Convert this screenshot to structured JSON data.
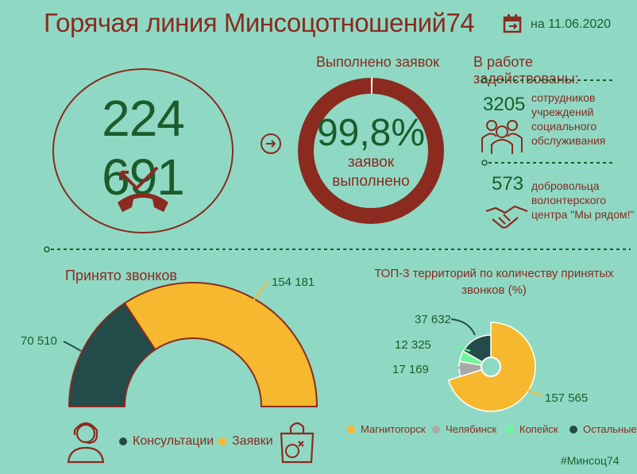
{
  "header": {
    "title": "Горячая линия Минсоцотношений74",
    "date": "на 11.06.2020",
    "calendar_icon": "calendar-icon"
  },
  "total_calls": {
    "value": "224 691",
    "icon": "phone-hangup-icon"
  },
  "completed": {
    "title": "Выполнено заявок",
    "percent_label": "99,8%",
    "sub_line1": "заявок",
    "sub_line2": "выполнено",
    "percent_value": 99.8
  },
  "staff": {
    "title": "В работе задействованы:",
    "employees_count": "3205",
    "employees_text": [
      "сотрудников",
      "учреждений",
      "социального",
      "обслуживания"
    ],
    "employees_icon": "people-group-icon",
    "volunteers_count": "573",
    "volunteers_text": [
      "добровольца",
      "волонтерского",
      "центра \"Мы рядом!\""
    ],
    "volunteers_icon": "handshake-icon"
  },
  "colors": {
    "brand_red": "#8b2a1f",
    "dark_green": "#1c5c2b",
    "teal_dark": "#234b4a",
    "yellow": "#f5b82e",
    "background": "#8fd9c4"
  },
  "chart_data": [
    {
      "type": "pie",
      "title": "Принято звонков",
      "categories": [
        "Консультации",
        "Заявки"
      ],
      "values": [
        70510,
        154181
      ],
      "value_labels": [
        "70 510",
        "154 181"
      ],
      "colors": [
        "#234b4a",
        "#f5b82e"
      ],
      "legend": [
        {
          "label": "Консультации",
          "color": "#234b4a",
          "icon": "headset-operator-icon"
        },
        {
          "label": "Заявки",
          "color": "#f5b82e",
          "icon": "shopping-bag-icon"
        }
      ]
    },
    {
      "type": "pie",
      "title": "ТОП-3 территорий по количеству принятых звонков (%)",
      "categories": [
        "Магнитогорск",
        "Челябинск",
        "Копейск",
        "Остальные"
      ],
      "values": [
        157565,
        17169,
        12325,
        37632
      ],
      "value_labels": [
        "157 565",
        "17 169",
        "12 325",
        "37 632"
      ],
      "colors": [
        "#f5b82e",
        "#a9a9a9",
        "#6ff598",
        "#234b4a"
      ],
      "legend_position": "bottom"
    }
  ],
  "hashtag": "#Минсоц74"
}
